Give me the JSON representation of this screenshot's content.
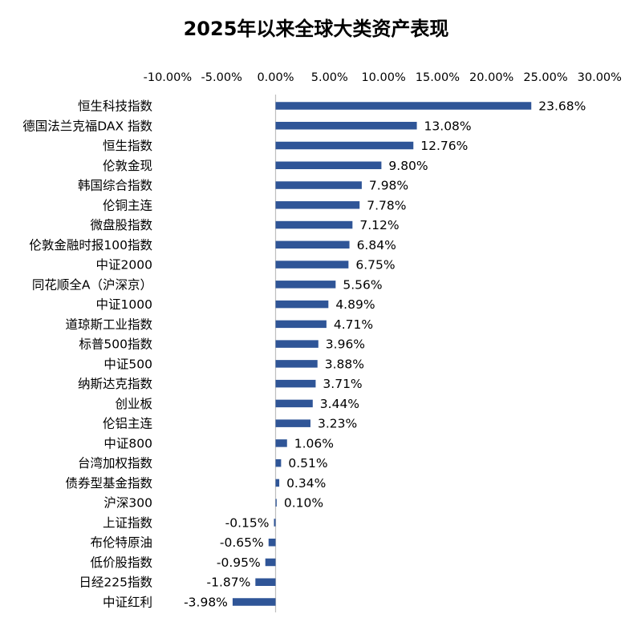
{
  "chart_data": {
    "type": "bar",
    "orientation": "horizontal",
    "title": "2025年以来全球大类资产表现",
    "xlabel": "",
    "ylabel": "",
    "xlim": [
      -10,
      30
    ],
    "ticks": [
      -10,
      -5,
      0,
      5,
      10,
      15,
      20,
      25,
      30
    ],
    "tick_labels": [
      "-10.00%",
      "-5.00%",
      "0.00%",
      "5.00%",
      "10.00%",
      "15.00%",
      "20.00%",
      "25.00%",
      "30.00%"
    ],
    "axis_position": "top",
    "grid": false,
    "bar_color": "#2F5597",
    "axis_color": "#BFBFBF",
    "categories": [
      "恒生科技指数",
      "德国法兰克福DAX 指数",
      "恒生指数",
      "伦敦金现",
      "韩国综合指数",
      "伦铜主连",
      "微盘股指数",
      "伦敦金融时报100指数",
      "中证2000",
      "同花顺全A（沪深京）",
      "中证1000",
      "道琼斯工业指数",
      "标普500指数",
      "中证500",
      "纳斯达克指数",
      "创业板",
      "伦铝主连",
      "中证800",
      "台湾加权指数",
      "债券型基金指数",
      "沪深300",
      "上证指数",
      "布伦特原油",
      "低价股指数",
      "日经225指数",
      "中证红利"
    ],
    "values": [
      23.68,
      13.08,
      12.76,
      9.8,
      7.98,
      7.78,
      7.12,
      6.84,
      6.75,
      5.56,
      4.89,
      4.71,
      3.96,
      3.88,
      3.71,
      3.44,
      3.23,
      1.06,
      0.51,
      0.34,
      0.1,
      -0.15,
      -0.65,
      -0.95,
      -1.87,
      -3.98
    ],
    "value_labels": [
      "23.68%",
      "13.08%",
      "12.76%",
      "9.80%",
      "7.98%",
      "7.78%",
      "7.12%",
      "6.84%",
      "6.75%",
      "5.56%",
      "4.89%",
      "4.71%",
      "3.96%",
      "3.88%",
      "3.71%",
      "3.44%",
      "3.23%",
      "1.06%",
      "0.51%",
      "0.34%",
      "0.10%",
      "-0.15%",
      "-0.65%",
      "-0.95%",
      "-1.87%",
      "-3.98%"
    ]
  }
}
